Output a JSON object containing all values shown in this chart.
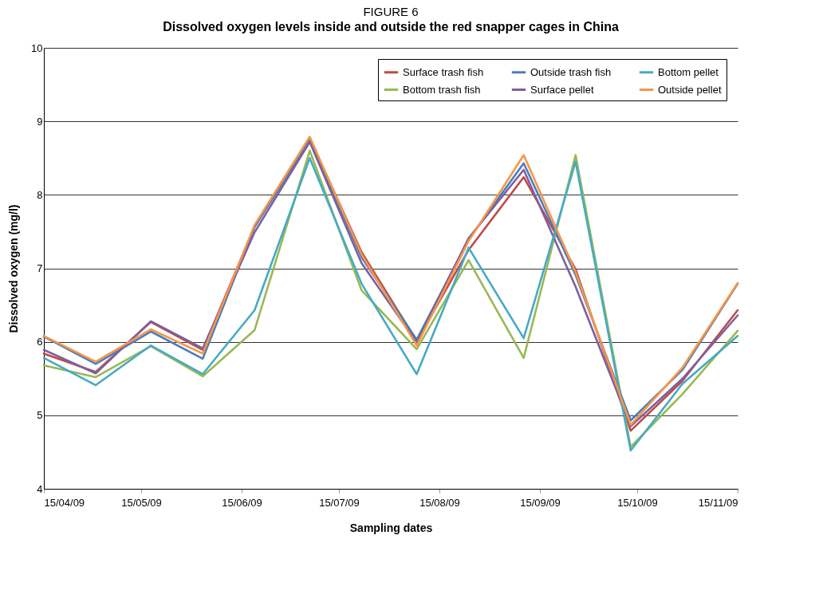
{
  "chart_data": {
    "type": "line",
    "title": "FIGURE 6",
    "subtitle": "Dissolved oxygen levels inside and outside the red snapper cages in China",
    "xlabel": "Sampling dates",
    "ylabel": "Dissolved oxygen (mg/l)",
    "x": [
      "2009-04-15",
      "2009-05-01",
      "2009-05-18",
      "2009-06-03",
      "2009-06-19",
      "2009-07-06",
      "2009-07-22",
      "2009-08-08",
      "2009-08-24",
      "2009-09-10",
      "2009-09-26",
      "2009-10-13",
      "2009-10-29",
      "2009-11-15"
    ],
    "series": [
      {
        "name": "Surface trash fish",
        "color": "#be4b48",
        "values": [
          5.84,
          5.59,
          6.27,
          5.89,
          7.57,
          8.77,
          7.22,
          6.01,
          7.25,
          8.24,
          6.99,
          4.79,
          5.47,
          6.43
        ]
      },
      {
        "name": "Bottom trash fish",
        "color": "#98b954",
        "values": [
          5.68,
          5.52,
          5.94,
          5.53,
          6.16,
          8.6,
          6.7,
          5.9,
          7.11,
          5.78,
          8.54,
          4.57,
          5.29,
          6.15
        ]
      },
      {
        "name": "Outside trash fish",
        "color": "#4a7ebb",
        "values": [
          6.07,
          5.7,
          6.14,
          5.77,
          7.56,
          8.75,
          7.15,
          6.03,
          7.39,
          8.43,
          6.91,
          4.93,
          5.62,
          6.79
        ]
      },
      {
        "name": "Surface pellet",
        "color": "#7d60a0",
        "values": [
          5.89,
          5.57,
          6.28,
          5.91,
          7.49,
          8.72,
          7.07,
          5.99,
          7.41,
          8.34,
          6.75,
          4.85,
          5.5,
          6.36
        ]
      },
      {
        "name": "Bottom pellet",
        "color": "#46aac5",
        "values": [
          5.78,
          5.41,
          5.95,
          5.56,
          6.43,
          8.5,
          6.79,
          5.56,
          7.28,
          6.05,
          8.45,
          4.52,
          5.43,
          6.08
        ]
      },
      {
        "name": "Outside pellet",
        "color": "#f79646",
        "values": [
          6.08,
          5.73,
          6.17,
          5.84,
          7.59,
          8.79,
          7.19,
          5.95,
          7.37,
          8.54,
          6.95,
          4.87,
          5.65,
          6.8
        ]
      }
    ],
    "xlim": [
      "2009-04-15",
      "2009-11-15"
    ],
    "xticks": [
      {
        "value": "2009-04-15",
        "label": "15/04/09"
      },
      {
        "value": "2009-05-15",
        "label": "15/05/09"
      },
      {
        "value": "2009-06-15",
        "label": "15/06/09"
      },
      {
        "value": "2009-07-15",
        "label": "15/07/09"
      },
      {
        "value": "2009-08-15",
        "label": "15/08/09"
      },
      {
        "value": "2009-09-15",
        "label": "15/09/09"
      },
      {
        "value": "2009-10-15",
        "label": "15/10/09"
      },
      {
        "value": "2009-11-15",
        "label": "15/11/09"
      }
    ],
    "ylim": [
      4,
      10
    ],
    "yticks": [
      4,
      5,
      6,
      7,
      8,
      9,
      10
    ],
    "grid": "y",
    "legend": "top right",
    "marker": "none",
    "line_style": "solid"
  }
}
